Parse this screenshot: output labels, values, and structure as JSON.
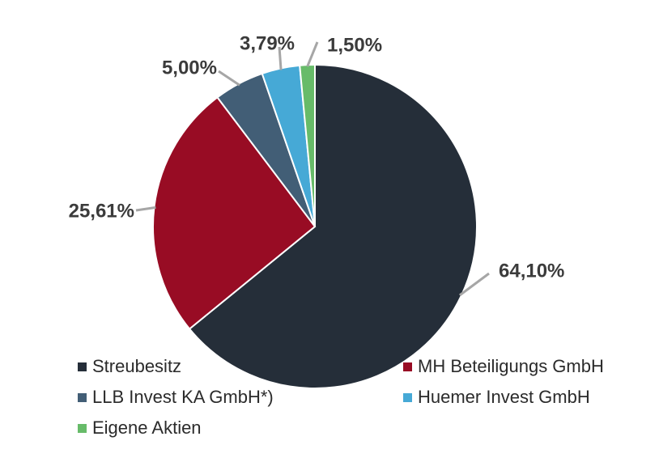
{
  "chart_data": {
    "type": "pie",
    "slices": [
      {
        "label": "Streubesitz",
        "value": 64.1,
        "value_label": "64,10%",
        "color": "#252e39"
      },
      {
        "label": "MH Beteiligungs GmbH",
        "value": 25.61,
        "value_label": "25,61%",
        "color": "#980c24"
      },
      {
        "label": "LLB Invest KA GmbH*)",
        "value": 5.0,
        "value_label": "5,00%",
        "color": "#425e76"
      },
      {
        "label": "Huemer Invest GmbH",
        "value": 3.79,
        "value_label": "3,79%",
        "color": "#46a9d6"
      },
      {
        "label": "Eigene Aktien",
        "value": 1.5,
        "value_label": "1,50%",
        "color": "#67bb69"
      }
    ],
    "start_angle": "12 o'clock",
    "direction": "clockwise",
    "legend_position": "bottom"
  }
}
